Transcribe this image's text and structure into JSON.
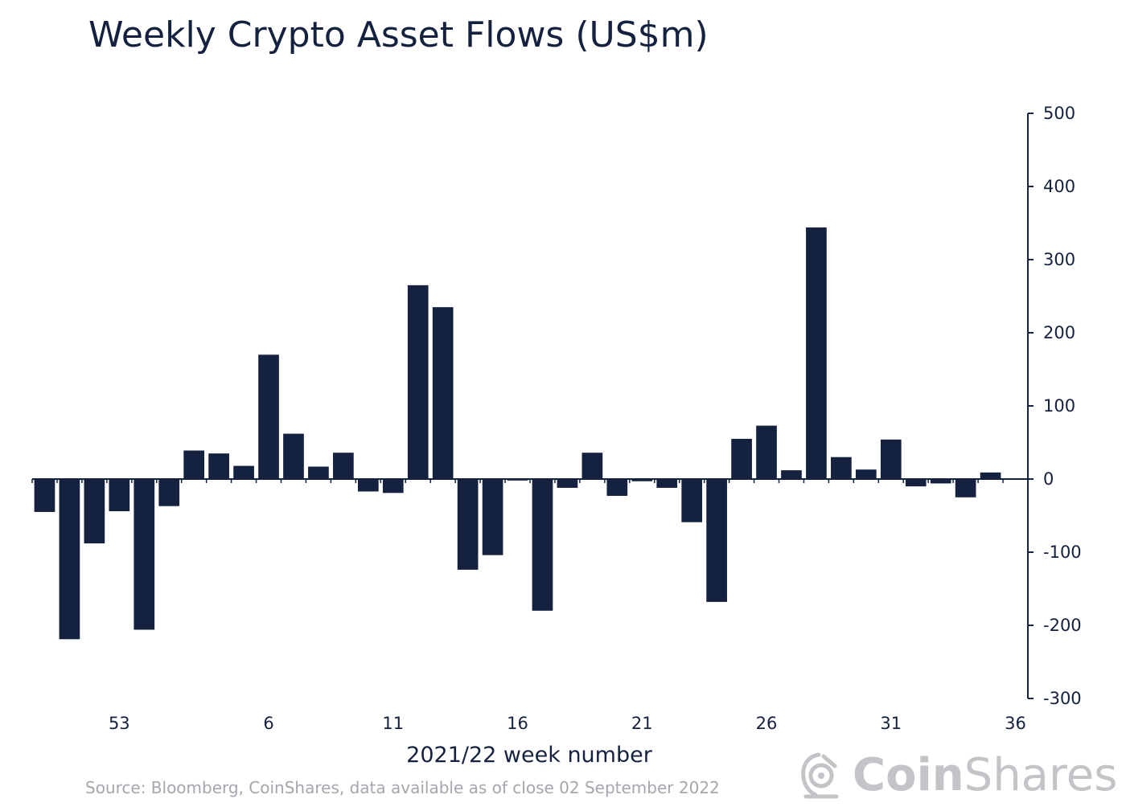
{
  "chart_data": {
    "type": "bar",
    "title": "Weekly Crypto Asset Flows (US$m)",
    "xlabel": "2021/22 week number",
    "ylabel": "",
    "ylim": [
      -300,
      500
    ],
    "yticks": [
      500,
      400,
      300,
      200,
      100,
      0,
      -100,
      -200,
      -300
    ],
    "y_axis_position": "right",
    "xtick_labels": [
      "53",
      "6",
      "11",
      "16",
      "21",
      "26",
      "31",
      "36"
    ],
    "categories": [
      "50",
      "51",
      "52",
      "53",
      "1",
      "2",
      "3",
      "4",
      "5",
      "6",
      "7",
      "8",
      "9",
      "10",
      "11",
      "12",
      "13",
      "14",
      "15",
      "16",
      "17",
      "18",
      "19",
      "20",
      "21",
      "22",
      "23",
      "24",
      "25",
      "26",
      "27",
      "28",
      "29",
      "30",
      "31",
      "32",
      "33",
      "34",
      "35",
      "36"
    ],
    "values": [
      -45,
      -219,
      -88,
      -44,
      -206,
      -37,
      39,
      35,
      18,
      170,
      62,
      17,
      36,
      -17,
      -19,
      265,
      235,
      -124,
      -104,
      -2,
      -180,
      -12,
      36,
      -23,
      -3,
      -12,
      -59,
      -168,
      55,
      73,
      12,
      344,
      30,
      13,
      54,
      -10,
      -6,
      -25,
      9,
      0
    ],
    "bar_color": "#14213f",
    "source": "Source: Bloomberg, CoinShares, data available as of close 02 September 2022"
  },
  "branding": {
    "logo_part1": "Coin",
    "logo_part2": "Shares",
    "logo_color": "#c2c4c7"
  }
}
